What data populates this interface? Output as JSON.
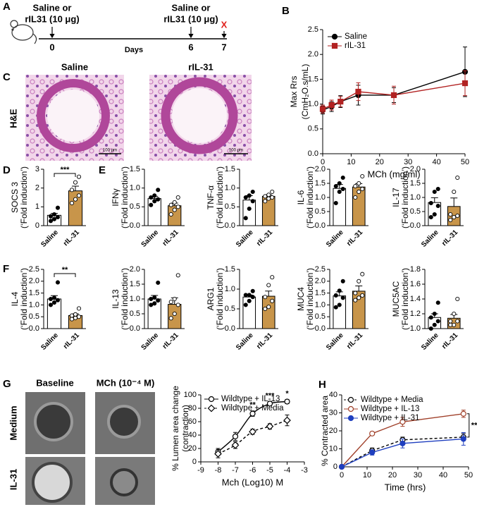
{
  "panel_labels": [
    "A",
    "B",
    "C",
    "D",
    "E",
    "F",
    "G",
    "H"
  ],
  "timeline": {
    "injections": [
      {
        "line1": "Saline or",
        "line2": "rIL31 (10 μg)",
        "day": "0"
      },
      {
        "line1": "Saline or",
        "line2": "rIL31 (10 μg)",
        "day": "6"
      }
    ],
    "end_day": "7",
    "end_mark": "X",
    "axis_label": "Days"
  },
  "histology": {
    "columns": [
      "Saline",
      "rIL-31"
    ],
    "row_label": "H&E",
    "scale_bars": [
      "100 μm",
      "100 μm"
    ]
  },
  "organoid": {
    "columns": [
      "Baseline",
      "MCh (10⁻⁴ M)"
    ],
    "rows": [
      "Medium",
      "IL-31"
    ]
  },
  "chart_data": [
    {
      "type": "line",
      "xlabel": "MCh (mg/ml)",
      "ylabel": [
        "Max Rrs",
        "(CmH₂O.s/mL)"
      ],
      "x": [
        0,
        3.125,
        6.25,
        12.5,
        25,
        50
      ],
      "xlim": [
        0,
        50
      ],
      "xticks": [
        0,
        10,
        20,
        30,
        40,
        50
      ],
      "ylim": [
        0,
        2.5
      ],
      "yticks": [
        {
          "value": 0,
          "label": "0.0"
        },
        {
          "value": 0.5,
          "label": "0.5"
        },
        {
          "value": 1,
          "label": "1.0"
        },
        {
          "value": 1.5,
          "label": "1.5"
        },
        {
          "value": 2,
          "label": "2.0"
        },
        {
          "value": 2.5,
          "label": "2.5"
        }
      ],
      "series": [
        {
          "name": "Saline",
          "color": "#000000",
          "marker": "circle",
          "filled": true,
          "dash": false,
          "values": [
            0.88,
            0.95,
            1.05,
            1.18,
            1.18,
            1.65
          ],
          "errors": [
            0.08,
            0.1,
            0.12,
            0.2,
            0.15,
            0.5
          ]
        },
        {
          "name": "rIL-31",
          "color": "#b22222",
          "marker": "square",
          "filled": true,
          "dash": false,
          "values": [
            0.9,
            0.98,
            1.05,
            1.25,
            1.18,
            1.42
          ],
          "errors": [
            0.08,
            0.1,
            0.1,
            0.18,
            0.18,
            0.25
          ]
        }
      ]
    },
    {
      "type": "bar",
      "ylabel": [
        "SOCS 3",
        "(‘Fold induction’)"
      ],
      "categories": [
        "Saline",
        "rIL-31"
      ],
      "colors": [
        "#ffffff",
        "#c8954a"
      ],
      "point_colors": [
        "#000000",
        "#ffffff"
      ],
      "values": [
        0.55,
        1.85
      ],
      "errors": [
        0.1,
        0.25
      ],
      "points": [
        [
          0.25,
          0.35,
          0.45,
          0.5,
          0.6,
          0.95
        ],
        [
          1.2,
          1.4,
          1.6,
          1.9,
          2.3,
          2.6
        ]
      ],
      "ylim": [
        0,
        3
      ],
      "yticks": [
        0,
        1,
        2,
        3
      ],
      "significance": "***"
    },
    {
      "type": "bar",
      "ylabel": [
        "IFNγ",
        "(‘Fold induction’)"
      ],
      "categories": [
        "Saline",
        "rIL-31"
      ],
      "colors": [
        "#ffffff",
        "#c8954a"
      ],
      "point_colors": [
        "#000000",
        "#ffffff"
      ],
      "values": [
        0.72,
        0.53
      ],
      "errors": [
        0.06,
        0.07
      ],
      "points": [
        [
          0.55,
          0.65,
          0.7,
          0.75,
          0.8,
          0.95
        ],
        [
          0.3,
          0.42,
          0.5,
          0.55,
          0.62,
          0.75
        ]
      ],
      "ylim": [
        0,
        1.5
      ],
      "yticks": [
        {
          "value": 0,
          "label": "0.0"
        },
        {
          "value": 0.5,
          "label": "0.5"
        },
        {
          "value": 1,
          "label": "1.0"
        },
        {
          "value": 1.5,
          "label": "1.5"
        }
      ]
    },
    {
      "type": "bar",
      "ylabel": [
        "TNF-α",
        "(‘Fold induction’)"
      ],
      "categories": [
        "Saline",
        "rIL-31"
      ],
      "colors": [
        "#ffffff",
        "#c8954a"
      ],
      "point_colors": [
        "#000000",
        "#ffffff"
      ],
      "values": [
        0.68,
        0.78
      ],
      "errors": [
        0.12,
        0.04
      ],
      "points": [
        [
          0.2,
          0.45,
          0.65,
          0.75,
          0.8,
          0.9
        ],
        [
          0.65,
          0.72,
          0.75,
          0.78,
          0.82,
          0.9
        ]
      ],
      "ylim": [
        0,
        1.5
      ],
      "yticks": [
        {
          "value": 0,
          "label": "0.0"
        },
        {
          "value": 0.5,
          "label": "0.5"
        },
        {
          "value": 1,
          "label": "1.0"
        },
        {
          "value": 1.5,
          "label": "1.5"
        }
      ]
    },
    {
      "type": "bar",
      "ylabel": [
        "IL-6",
        "(‘Fold induction’)"
      ],
      "categories": [
        "Saline",
        "rIL-31"
      ],
      "colors": [
        "#ffffff",
        "#c8954a"
      ],
      "point_colors": [
        "#000000",
        "#ffffff"
      ],
      "values": [
        1.32,
        1.37
      ],
      "errors": [
        0.14,
        0.12
      ],
      "points": [
        [
          0.8,
          1.2,
          1.3,
          1.4,
          1.5,
          1.7
        ],
        [
          1.0,
          1.2,
          1.3,
          1.4,
          1.5,
          1.75
        ]
      ],
      "ylim": [
        0,
        2
      ],
      "yticks": [
        {
          "value": 0,
          "label": "0.0"
        },
        {
          "value": 0.5,
          "label": "0.5"
        },
        {
          "value": 1,
          "label": "1.0"
        },
        {
          "value": 1.5,
          "label": "1.5"
        },
        {
          "value": 2,
          "label": "2.0"
        }
      ]
    },
    {
      "type": "bar",
      "ylabel": [
        "IL-17",
        "(‘Fold induction’)"
      ],
      "categories": [
        "Saline",
        "rIL-31"
      ],
      "colors": [
        "#ffffff",
        "#c8954a"
      ],
      "point_colors": [
        "#000000",
        "#ffffff"
      ],
      "values": [
        0.82,
        0.68
      ],
      "errors": [
        0.17,
        0.3
      ],
      "points": [
        [
          0.3,
          0.4,
          0.7,
          0.8,
          1.2,
          1.3
        ],
        [
          0.2,
          0.3,
          0.35,
          0.4,
          1.2,
          1.7
        ]
      ],
      "ylim": [
        0,
        2
      ],
      "yticks": [
        {
          "value": 0,
          "label": "0.0"
        },
        {
          "value": 0.5,
          "label": "0.5"
        },
        {
          "value": 1,
          "label": "1.0"
        },
        {
          "value": 1.5,
          "label": "1.5"
        },
        {
          "value": 2,
          "label": "2.0"
        }
      ]
    },
    {
      "type": "bar",
      "ylabel": [
        "IL-4",
        "(‘Fold induction’)"
      ],
      "categories": [
        "Saline",
        "rIL-31"
      ],
      "colors": [
        "#ffffff",
        "#c8954a"
      ],
      "point_colors": [
        "#000000",
        "#ffffff"
      ],
      "values": [
        1.25,
        0.55
      ],
      "errors": [
        0.14,
        0.07
      ],
      "points": [
        [
          1.0,
          1.1,
          1.2,
          1.25,
          1.3,
          1.95
        ],
        [
          0.4,
          0.45,
          0.5,
          0.55,
          0.6,
          0.85
        ]
      ],
      "ylim": [
        0,
        2.5
      ],
      "yticks": [
        {
          "value": 0,
          "label": "0.0"
        },
        {
          "value": 0.5,
          "label": "0.5"
        },
        {
          "value": 1,
          "label": "1.0"
        },
        {
          "value": 1.5,
          "label": "1.5"
        },
        {
          "value": 2,
          "label": "2.0"
        },
        {
          "value": 2.5,
          "label": "2.5"
        }
      ],
      "significance": "**"
    },
    {
      "type": "bar",
      "ylabel": [
        "IL-13",
        "(‘Fold induction’)"
      ],
      "categories": [
        "Saline",
        "rIL-31"
      ],
      "colors": [
        "#ffffff",
        "#c8954a"
      ],
      "point_colors": [
        "#000000",
        "#ffffff"
      ],
      "values": [
        1.0,
        0.82
      ],
      "errors": [
        0.12,
        0.22
      ],
      "points": [
        [
          0.8,
          0.85,
          0.95,
          1.0,
          1.05,
          1.55
        ],
        [
          0.35,
          0.5,
          0.8,
          0.9,
          1.0,
          1.8
        ]
      ],
      "ylim": [
        0,
        2
      ],
      "yticks": [
        {
          "value": 0,
          "label": "0.0"
        },
        {
          "value": 0.5,
          "label": "0.5"
        },
        {
          "value": 1,
          "label": "1.0"
        },
        {
          "value": 1.5,
          "label": "1.5"
        },
        {
          "value": 2,
          "label": "2.0"
        }
      ]
    },
    {
      "type": "bar",
      "ylabel": [
        "ARG1",
        "(‘Fold induction’)"
      ],
      "categories": [
        "Saline",
        "rIL-31"
      ],
      "colors": [
        "#ffffff",
        "#c8954a"
      ],
      "point_colors": [
        "#000000",
        "#ffffff"
      ],
      "values": [
        0.8,
        0.82
      ],
      "errors": [
        0.05,
        0.13
      ],
      "points": [
        [
          0.6,
          0.7,
          0.8,
          0.85,
          0.85,
          0.95
        ],
        [
          0.5,
          0.55,
          0.7,
          0.8,
          1.1,
          1.3
        ]
      ],
      "ylim": [
        0,
        1.5
      ],
      "yticks": [
        {
          "value": 0,
          "label": "0.0"
        },
        {
          "value": 0.5,
          "label": "0.5"
        },
        {
          "value": 1,
          "label": "1.0"
        },
        {
          "value": 1.5,
          "label": "1.5"
        }
      ]
    },
    {
      "type": "bar",
      "ylabel": [
        "MUC4",
        "(‘Fold induction’)"
      ],
      "categories": [
        "Saline",
        "rIL-31"
      ],
      "colors": [
        "#ffffff",
        "#c8954a"
      ],
      "point_colors": [
        "#000000",
        "#ffffff"
      ],
      "values": [
        1.38,
        1.58
      ],
      "errors": [
        0.17,
        0.22
      ],
      "points": [
        [
          0.9,
          1.0,
          1.3,
          1.4,
          1.6,
          2.0
        ],
        [
          1.2,
          1.3,
          1.4,
          1.5,
          2.0,
          2.3
        ]
      ],
      "ylim": [
        0,
        2.5
      ],
      "yticks": [
        {
          "value": 0,
          "label": "0.0"
        },
        {
          "value": 0.5,
          "label": "0.5"
        },
        {
          "value": 1,
          "label": "1.0"
        },
        {
          "value": 1.5,
          "label": "1.5"
        },
        {
          "value": 2,
          "label": "2.0"
        },
        {
          "value": 2.5,
          "label": "2.5"
        }
      ]
    },
    {
      "type": "bar",
      "ylabel": [
        "MUC5AC",
        "(‘Fold induction’)"
      ],
      "categories": [
        "Saline",
        "rIL-31"
      ],
      "colors": [
        "#ffffff",
        "#c8954a"
      ],
      "point_colors": [
        "#000000",
        "#ffffff"
      ],
      "values": [
        1.15,
        1.14
      ],
      "errors": [
        0.05,
        0.05
      ],
      "points": [
        [
          1.0,
          1.05,
          1.1,
          1.15,
          1.2,
          1.35
        ],
        [
          1.05,
          1.05,
          1.1,
          1.1,
          1.2,
          1.4
        ]
      ],
      "ylim": [
        1,
        1.8
      ],
      "yticks": [
        {
          "value": 1,
          "label": "1.0"
        },
        1.2,
        1.4,
        1.6,
        1.8
      ]
    },
    {
      "type": "line",
      "xlabel": "Mch (Log10)  M",
      "ylabel": [
        "% Lumen area  change",
        "(contraction)"
      ],
      "x": [
        -8,
        -7,
        -6,
        -5,
        -4
      ],
      "xlim": [
        -9,
        -3
      ],
      "xticks": [
        -9,
        -8,
        -7,
        -6,
        -5,
        -4,
        -3
      ],
      "ylim": [
        0,
        100
      ],
      "yticks": [
        0,
        20,
        40,
        60,
        80,
        100
      ],
      "smooth": true,
      "series": [
        {
          "name": "Wildtype + IL-13",
          "color": "#000000",
          "marker": "circle",
          "filled": false,
          "dash": false,
          "values": [
            15,
            38,
            72,
            87,
            90
          ],
          "errors": [
            5,
            6,
            4,
            3,
            3
          ]
        },
        {
          "name": "Wildtype + Media",
          "color": "#000000",
          "marker": "diamond",
          "filled": false,
          "dash": true,
          "values": [
            12,
            25,
            45,
            53,
            62
          ],
          "errors": [
            6,
            5,
            4,
            4,
            8
          ]
        }
      ],
      "annotations": [
        "**",
        "***",
        "*"
      ]
    },
    {
      "type": "line",
      "xlabel": "Time (hrs)",
      "ylabel": [
        "% Contracted area"
      ],
      "x": [
        0,
        12,
        24,
        48
      ],
      "xlim": [
        0,
        50
      ],
      "xticks": [
        0,
        10,
        20,
        30,
        40,
        50
      ],
      "ylim": [
        0,
        40
      ],
      "yticks": [
        0,
        10,
        20,
        30,
        40
      ],
      "series": [
        {
          "name": "Wildtype + Media",
          "color": "#000000",
          "marker": "circle",
          "filled": false,
          "dash": true,
          "values": [
            0,
            9,
            15,
            16.5
          ],
          "errors": [
            0,
            1.5,
            1.5,
            2
          ]
        },
        {
          "name": "Wildtype + IL-13",
          "color": "#a0402a",
          "marker": "circle",
          "filled": false,
          "dash": false,
          "values": [
            0,
            18.5,
            25,
            29.5
          ],
          "errors": [
            0,
            0.8,
            2.5,
            2
          ]
        },
        {
          "name": "Wildtype + IL-31",
          "color": "#1f3fbf",
          "marker": "circle",
          "filled": true,
          "dash": false,
          "values": [
            0,
            8,
            13,
            15.5
          ],
          "errors": [
            0,
            1.5,
            2.5,
            3.5
          ]
        }
      ],
      "annotations": [
        "****"
      ]
    }
  ]
}
